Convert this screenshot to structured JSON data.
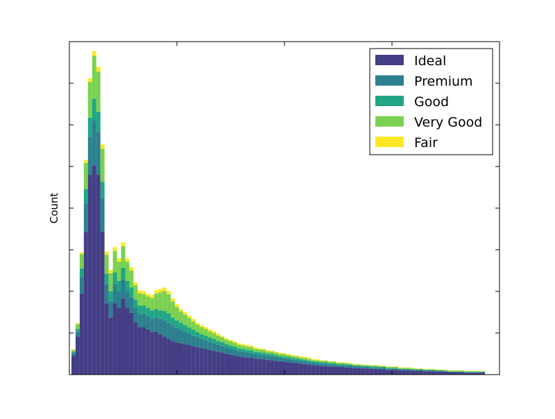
{
  "chart_data": {
    "type": "bar",
    "stacked": true,
    "title": "",
    "xlabel": "",
    "ylabel": "Count",
    "x_tick_labels_shown": false,
    "y_tick_labels_shown": false,
    "grid": false,
    "legend_position": "top-right",
    "x_bins": [
      1,
      2,
      3,
      4,
      5,
      6,
      7,
      8,
      9,
      10,
      11,
      12,
      13,
      14,
      15,
      16,
      17,
      18,
      19,
      20,
      21,
      22,
      23,
      24,
      25,
      26,
      27,
      28,
      29,
      30,
      31,
      32,
      33,
      34,
      35,
      36,
      37,
      38,
      39,
      40,
      41,
      42,
      43,
      44,
      45,
      46,
      47,
      48,
      49,
      50,
      51,
      52,
      53,
      54,
      55,
      56,
      57,
      58,
      59,
      60,
      61,
      62,
      63,
      64,
      65,
      66,
      67,
      68,
      69,
      70,
      71,
      72,
      73,
      74,
      75,
      76,
      77,
      78,
      79,
      80,
      81,
      82,
      83,
      84,
      85,
      86,
      87,
      88,
      89,
      90,
      91,
      92,
      93,
      94,
      95,
      96,
      97,
      98,
      99,
      100
    ],
    "x_range": [
      0,
      104
    ],
    "y_range": [
      0,
      700
    ],
    "series": [
      {
        "name": "Ideal",
        "color": "#433e85",
        "values": [
          40,
          80,
          170,
          300,
          420,
          440,
          420,
          300,
          150,
          120,
          150,
          140,
          160,
          140,
          130,
          110,
          100,
          100,
          95,
          90,
          90,
          85,
          80,
          75,
          70,
          68,
          66,
          64,
          62,
          60,
          58,
          56,
          54,
          52,
          50,
          48,
          46,
          44,
          42,
          40,
          38,
          37,
          36,
          35,
          34,
          33,
          32,
          31,
          30,
          29,
          28,
          27,
          26,
          25,
          24,
          23,
          22,
          21,
          20,
          19,
          18,
          18,
          17,
          17,
          16,
          16,
          15,
          15,
          14,
          14,
          13,
          13,
          12,
          12,
          11,
          11,
          10,
          10,
          10,
          9,
          9,
          9,
          8,
          8,
          8,
          7,
          7,
          7,
          6,
          6,
          6,
          5,
          5,
          5,
          5,
          4,
          4,
          4,
          4,
          4
        ]
      },
      {
        "name": "Premium",
        "color": "#2c7f8e",
        "values": [
          5,
          10,
          35,
          60,
          80,
          95,
          90,
          70,
          40,
          35,
          40,
          35,
          40,
          35,
          33,
          30,
          28,
          28,
          28,
          28,
          30,
          32,
          34,
          34,
          32,
          30,
          28,
          26,
          24,
          22,
          20,
          19,
          18,
          17,
          16,
          15,
          14,
          13,
          12,
          12,
          11,
          11,
          10,
          10,
          9,
          9,
          9,
          8,
          8,
          8,
          7,
          7,
          7,
          6,
          6,
          6,
          6,
          5,
          5,
          5,
          5,
          5,
          4,
          4,
          4,
          4,
          4,
          4,
          3,
          3,
          3,
          3,
          3,
          3,
          3,
          3,
          2,
          2,
          2,
          2,
          2,
          2,
          2,
          2,
          2,
          2,
          2,
          2,
          2,
          2,
          1,
          1,
          1,
          1,
          1,
          1,
          1,
          1,
          1,
          1
        ]
      },
      {
        "name": "Good",
        "color": "#21a585",
        "values": [
          3,
          6,
          18,
          30,
          40,
          45,
          42,
          35,
          22,
          20,
          25,
          22,
          25,
          22,
          20,
          18,
          17,
          17,
          17,
          17,
          18,
          18,
          20,
          20,
          18,
          16,
          15,
          14,
          13,
          12,
          11,
          10,
          10,
          9,
          9,
          8,
          8,
          7,
          7,
          7,
          6,
          6,
          6,
          6,
          5,
          5,
          5,
          5,
          5,
          4,
          4,
          4,
          4,
          4,
          4,
          3,
          3,
          3,
          3,
          3,
          3,
          3,
          3,
          3,
          2,
          2,
          2,
          2,
          2,
          2,
          2,
          2,
          2,
          2,
          2,
          2,
          2,
          2,
          2,
          1,
          1,
          1,
          1,
          1,
          1,
          1,
          1,
          1,
          1,
          1,
          1,
          1,
          1,
          1,
          1,
          1,
          1,
          1,
          1,
          1
        ]
      },
      {
        "name": "Very Good",
        "color": "#7ad151",
        "values": [
          4,
          10,
          30,
          55,
          75,
          90,
          85,
          70,
          40,
          38,
          45,
          40,
          45,
          40,
          36,
          30,
          26,
          24,
          24,
          26,
          32,
          38,
          42,
          40,
          34,
          28,
          24,
          22,
          20,
          18,
          16,
          15,
          14,
          13,
          12,
          11,
          10,
          9,
          9,
          8,
          8,
          7,
          7,
          7,
          6,
          6,
          6,
          5,
          5,
          5,
          5,
          5,
          4,
          4,
          4,
          4,
          4,
          4,
          3,
          3,
          3,
          3,
          3,
          3,
          3,
          3,
          3,
          2,
          2,
          2,
          2,
          2,
          2,
          2,
          2,
          2,
          2,
          2,
          2,
          2,
          2,
          2,
          2,
          1,
          1,
          1,
          1,
          1,
          1,
          1,
          1,
          1,
          1,
          1,
          1,
          1,
          1,
          1,
          1,
          1
        ]
      },
      {
        "name": "Fair",
        "color": "#fde725",
        "values": [
          1,
          2,
          4,
          6,
          8,
          10,
          10,
          9,
          7,
          7,
          8,
          7,
          8,
          7,
          7,
          6,
          6,
          6,
          6,
          6,
          7,
          7,
          7,
          7,
          6,
          6,
          5,
          5,
          5,
          5,
          4,
          4,
          4,
          4,
          4,
          4,
          3,
          3,
          3,
          3,
          3,
          3,
          3,
          3,
          3,
          2,
          2,
          2,
          2,
          2,
          2,
          2,
          2,
          2,
          2,
          2,
          2,
          2,
          2,
          2,
          1,
          1,
          1,
          1,
          1,
          1,
          1,
          1,
          1,
          1,
          1,
          1,
          1,
          1,
          1,
          1,
          1,
          1,
          1,
          1,
          1,
          1,
          1,
          1,
          1,
          1,
          1,
          1,
          1,
          1,
          1,
          1,
          1,
          1,
          1,
          1,
          1,
          1,
          1,
          1
        ]
      }
    ]
  }
}
